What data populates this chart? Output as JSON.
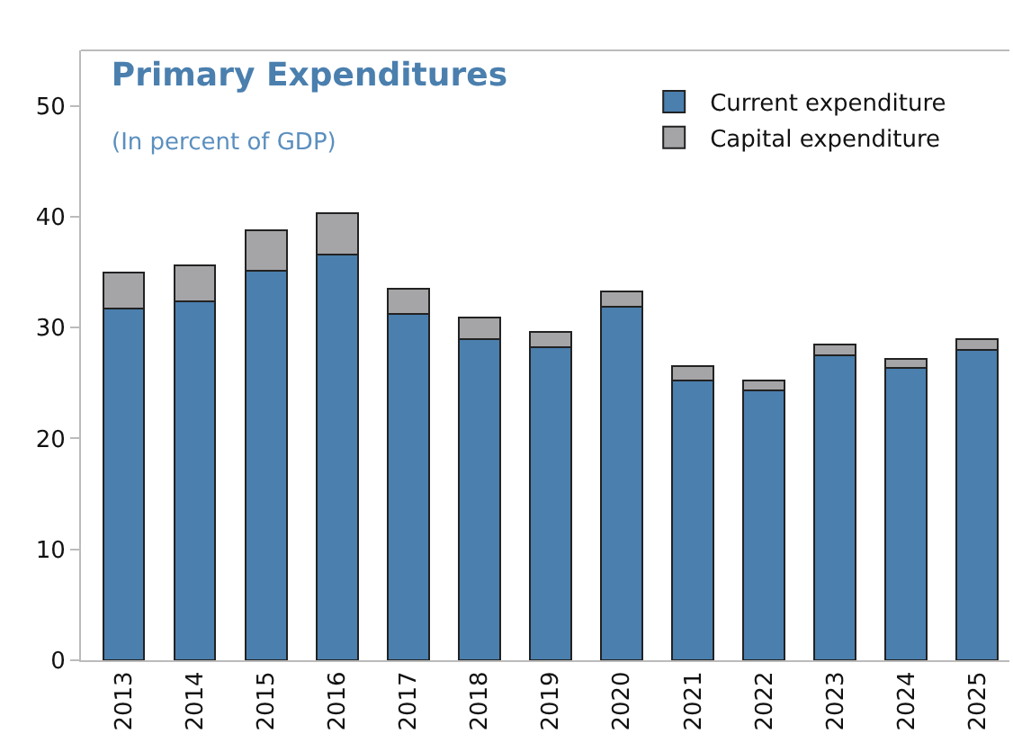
{
  "chart_data": {
    "type": "bar",
    "title": "Primary Expenditures",
    "subtitle": "(In percent of GDP)",
    "categories": [
      "2013",
      "2014",
      "2015",
      "2016",
      "2017",
      "2018",
      "2019",
      "2020",
      "2021",
      "2022",
      "2023",
      "2024",
      "2025"
    ],
    "series": [
      {
        "name": "Current expenditure",
        "color": "#4a7fae",
        "values": [
          31.7,
          32.4,
          35.1,
          36.6,
          31.2,
          29.0,
          28.2,
          31.9,
          25.2,
          24.3,
          27.5,
          26.4,
          28.0
        ]
      },
      {
        "name": "Capital expenditure",
        "color": "#a5a5a8",
        "values": [
          3.3,
          3.2,
          3.7,
          3.7,
          2.3,
          1.9,
          1.4,
          1.4,
          1.3,
          0.9,
          1.0,
          0.8,
          1.0
        ]
      }
    ],
    "stacked": true,
    "ylim": [
      0,
      55
    ],
    "yticks": [
      0,
      10,
      20,
      30,
      40,
      50
    ],
    "grid": false,
    "legend": "top right"
  }
}
